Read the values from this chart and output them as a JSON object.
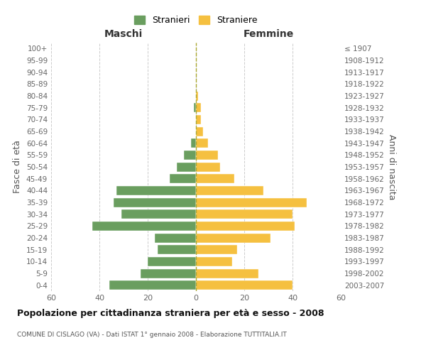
{
  "age_groups": [
    "100+",
    "95-99",
    "90-94",
    "85-89",
    "80-84",
    "75-79",
    "70-74",
    "65-69",
    "60-64",
    "55-59",
    "50-54",
    "45-49",
    "40-44",
    "35-39",
    "30-34",
    "25-29",
    "20-24",
    "15-19",
    "10-14",
    "5-9",
    "0-4"
  ],
  "birth_years": [
    "≤ 1907",
    "1908-1912",
    "1913-1917",
    "1918-1922",
    "1923-1927",
    "1928-1932",
    "1933-1937",
    "1938-1942",
    "1943-1947",
    "1948-1952",
    "1953-1957",
    "1958-1962",
    "1963-1967",
    "1968-1972",
    "1973-1977",
    "1978-1982",
    "1983-1987",
    "1988-1992",
    "1993-1997",
    "1998-2002",
    "2003-2007"
  ],
  "males": [
    0,
    0,
    0,
    0,
    0,
    1,
    0,
    0,
    2,
    5,
    8,
    11,
    33,
    34,
    31,
    43,
    17,
    16,
    20,
    23,
    36
  ],
  "females": [
    0,
    0,
    0,
    0,
    1,
    2,
    2,
    3,
    5,
    9,
    10,
    16,
    28,
    46,
    40,
    41,
    31,
    17,
    15,
    26,
    40
  ],
  "male_color": "#6a9e5f",
  "female_color": "#f5c040",
  "bg_color": "#ffffff",
  "grid_color": "#cccccc",
  "dashed_color": "#aaa830",
  "title_main": "Popolazione per cittadinanza straniera per età e sesso - 2008",
  "title_sub": "COMUNE DI CISLAGO (VA) - Dati ISTAT 1° gennaio 2008 - Elaborazione TUTTITALIA.IT",
  "label_fasce": "Fasce di età",
  "label_anni": "Anni di nascita",
  "label_maschi": "Maschi",
  "label_femmine": "Femmine",
  "legend_stranieri": "Stranieri",
  "legend_straniere": "Straniere",
  "xlim": 60
}
